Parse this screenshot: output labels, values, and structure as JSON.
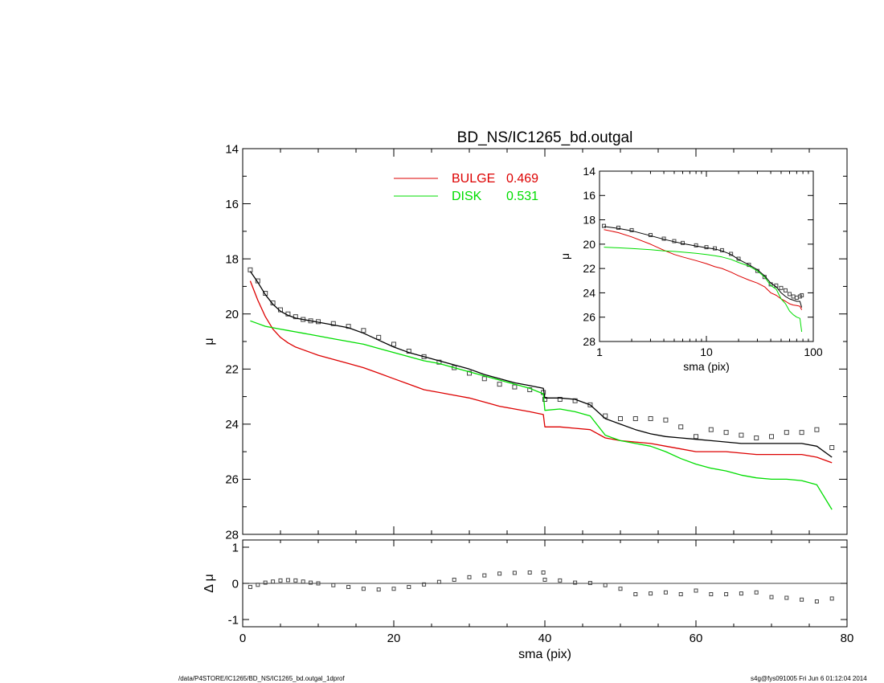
{
  "footer": {
    "path": "/data/P4STORE/IC1265/BD_NS/IC1265_bd.outgal_1dprof",
    "user_stamp": "s4g@fys091005  Fri Jun  6 01:12:04 2014"
  },
  "colors": {
    "bulge": "#dd0000",
    "disk": "#00dd00",
    "model": "#000000",
    "model_tail": "#2222aa",
    "data_points": "#444444"
  },
  "chart_data": [
    {
      "type": "line",
      "title": "BD_NS/IC1265_bd.outgal",
      "xlabel": "",
      "ylabel": "μ",
      "xlim": [
        0,
        80
      ],
      "ylim": [
        28,
        14
      ],
      "y_inverted": true,
      "xticks": [
        0,
        20,
        40,
        60,
        80
      ],
      "yticks": [
        14,
        16,
        18,
        20,
        22,
        24,
        26,
        28
      ],
      "legend": {
        "placement": "top-center",
        "entries": [
          {
            "label": "BULGE",
            "value": "0.469",
            "color": "#dd0000"
          },
          {
            "label": "DISK",
            "value": "0.531",
            "color": "#00dd00"
          }
        ]
      },
      "x": [
        1,
        2,
        3,
        4,
        5,
        6,
        7,
        8,
        9,
        10,
        12,
        14,
        16,
        18,
        20,
        22,
        24,
        26,
        28,
        30,
        32,
        34,
        36,
        38,
        39.8,
        40,
        42,
        44,
        46,
        48,
        50,
        52,
        54,
        56,
        58,
        60,
        62,
        64,
        66,
        68,
        70,
        72,
        74,
        76,
        78
      ],
      "series": [
        {
          "name": "data",
          "style": "markers",
          "values": [
            18.4,
            18.8,
            19.25,
            19.6,
            19.85,
            20.0,
            20.1,
            20.2,
            20.25,
            20.28,
            20.35,
            20.45,
            20.6,
            20.85,
            21.1,
            21.35,
            21.55,
            21.75,
            21.95,
            22.15,
            22.35,
            22.55,
            22.65,
            22.75,
            22.85,
            23.1,
            23.1,
            23.15,
            23.3,
            23.7,
            23.8,
            23.8,
            23.8,
            23.85,
            24.1,
            24.45,
            24.2,
            24.3,
            24.4,
            24.5,
            24.45,
            24.3,
            24.3,
            24.2,
            24.85
          ]
        },
        {
          "name": "model",
          "style": "line",
          "values": [
            18.45,
            18.85,
            19.3,
            19.65,
            19.9,
            20.05,
            20.15,
            20.2,
            20.25,
            20.3,
            20.4,
            20.5,
            20.7,
            20.95,
            21.2,
            21.4,
            21.55,
            21.7,
            21.85,
            22.0,
            22.2,
            22.35,
            22.5,
            22.6,
            22.7,
            23.05,
            23.05,
            23.1,
            23.3,
            23.8,
            24.0,
            24.2,
            24.35,
            24.45,
            24.5,
            24.55,
            24.6,
            24.65,
            24.7,
            24.7,
            24.7,
            24.7,
            24.7,
            24.8,
            25.2
          ]
        },
        {
          "name": "bulge",
          "style": "line",
          "values": [
            18.8,
            19.5,
            20.1,
            20.55,
            20.85,
            21.05,
            21.2,
            21.3,
            21.4,
            21.5,
            21.65,
            21.8,
            21.95,
            22.15,
            22.35,
            22.55,
            22.75,
            22.85,
            22.95,
            23.05,
            23.2,
            23.35,
            23.45,
            23.55,
            23.65,
            24.1,
            24.1,
            24.15,
            24.2,
            24.5,
            24.6,
            24.65,
            24.7,
            24.8,
            24.9,
            25.0,
            25.0,
            25.0,
            25.05,
            25.1,
            25.1,
            25.1,
            25.1,
            25.2,
            25.4
          ]
        },
        {
          "name": "disk",
          "style": "line",
          "values": [
            20.25,
            20.35,
            20.45,
            20.5,
            20.55,
            20.6,
            20.65,
            20.7,
            20.75,
            20.8,
            20.9,
            21.0,
            21.1,
            21.25,
            21.4,
            21.55,
            21.7,
            21.8,
            21.95,
            22.1,
            22.25,
            22.4,
            22.55,
            22.7,
            22.9,
            23.5,
            23.45,
            23.55,
            23.7,
            24.4,
            24.6,
            24.7,
            24.8,
            25.0,
            25.25,
            25.45,
            25.6,
            25.7,
            25.85,
            25.95,
            26.0,
            26.0,
            26.05,
            26.2,
            27.1
          ]
        }
      ]
    },
    {
      "type": "line",
      "title": "",
      "xlabel": "sma (pix)",
      "ylabel": "Δ μ",
      "xlim": [
        0,
        80
      ],
      "ylim": [
        -1.2,
        1.2
      ],
      "xticks": [
        0,
        20,
        40,
        60,
        80
      ],
      "yticks": [
        1,
        0,
        -1
      ],
      "reference_line": 0,
      "x": [
        1,
        2,
        3,
        4,
        5,
        6,
        7,
        8,
        9,
        10,
        12,
        14,
        16,
        18,
        20,
        22,
        24,
        26,
        28,
        30,
        32,
        34,
        36,
        38,
        39.8,
        40,
        42,
        44,
        46,
        48,
        50,
        52,
        54,
        56,
        58,
        60,
        62,
        64,
        66,
        68,
        70,
        72,
        74,
        76,
        78
      ],
      "series": [
        {
          "name": "residual",
          "style": "markers",
          "values": [
            -0.1,
            -0.04,
            0.02,
            0.05,
            0.08,
            0.09,
            0.08,
            0.05,
            0.02,
            0.0,
            -0.05,
            -0.1,
            -0.15,
            -0.17,
            -0.15,
            -0.1,
            -0.03,
            0.04,
            0.1,
            0.17,
            0.22,
            0.27,
            0.29,
            0.3,
            0.3,
            0.1,
            0.08,
            0.02,
            0.01,
            -0.05,
            -0.15,
            -0.3,
            -0.28,
            -0.25,
            -0.3,
            -0.2,
            -0.3,
            -0.3,
            -0.28,
            -0.25,
            -0.38,
            -0.4,
            -0.45,
            -0.5,
            -0.42
          ]
        }
      ]
    },
    {
      "type": "line",
      "title": "",
      "xlabel": "sma (pix)",
      "ylabel": "μ",
      "xscale": "log",
      "xlim": [
        1,
        100
      ],
      "ylim": [
        28,
        14
      ],
      "y_inverted": true,
      "xticks": [
        1,
        10,
        100
      ],
      "yticks": [
        14,
        16,
        18,
        20,
        22,
        24,
        26,
        28
      ],
      "x": [
        1.1,
        1.5,
        2,
        3,
        4,
        5,
        6,
        8,
        10,
        12,
        14,
        17,
        20,
        25,
        30,
        35,
        40,
        45,
        50,
        55,
        60,
        65,
        70,
        75,
        78
      ],
      "series": [
        {
          "name": "data",
          "style": "markers",
          "values": [
            18.5,
            18.65,
            18.85,
            19.25,
            19.55,
            19.75,
            19.9,
            20.1,
            20.25,
            20.35,
            20.5,
            20.8,
            21.2,
            21.7,
            22.2,
            22.7,
            23.3,
            23.4,
            23.6,
            23.8,
            24.1,
            24.3,
            24.4,
            24.3,
            24.2
          ]
        },
        {
          "name": "model",
          "style": "line",
          "values": [
            18.55,
            18.7,
            18.9,
            19.3,
            19.6,
            19.8,
            19.95,
            20.15,
            20.3,
            20.4,
            20.55,
            20.85,
            21.25,
            21.7,
            22.1,
            22.6,
            23.2,
            23.5,
            24.0,
            24.3,
            24.5,
            24.6,
            24.7,
            24.7,
            25.2
          ]
        },
        {
          "name": "bulge",
          "style": "line",
          "values": [
            18.8,
            19.05,
            19.4,
            20.0,
            20.5,
            20.85,
            21.05,
            21.35,
            21.6,
            21.85,
            22.0,
            22.3,
            22.6,
            22.95,
            23.2,
            23.5,
            24.0,
            24.2,
            24.5,
            24.7,
            24.9,
            25.0,
            25.05,
            25.1,
            25.4
          ]
        },
        {
          "name": "disk",
          "style": "line",
          "values": [
            20.25,
            20.3,
            20.35,
            20.45,
            20.55,
            20.6,
            20.65,
            20.75,
            20.85,
            20.95,
            21.05,
            21.25,
            21.5,
            21.8,
            22.2,
            22.7,
            23.4,
            23.7,
            24.5,
            24.9,
            25.5,
            25.8,
            26.0,
            26.1,
            27.2
          ]
        }
      ]
    }
  ]
}
